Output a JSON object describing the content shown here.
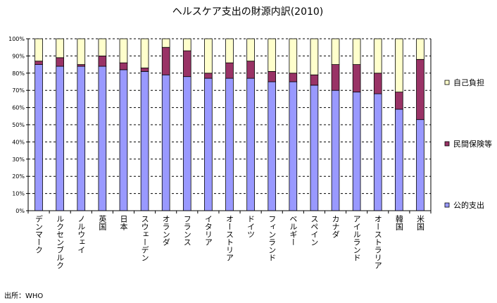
{
  "chart_data": {
    "type": "bar",
    "stacked": true,
    "percent": true,
    "title": "ヘルスケア支出の財源内訳(2010)",
    "source": "出所：WHO",
    "ylim": [
      0,
      100
    ],
    "yticks": [
      "0%",
      "10%",
      "20%",
      "30%",
      "40%",
      "50%",
      "60%",
      "70%",
      "80%",
      "90%",
      "100%"
    ],
    "grid": true,
    "legend_position": "right",
    "categories": [
      "デンマーク",
      "ルクセンブルク",
      "ノルウェイ",
      "英国",
      "日本",
      "スウェーデン",
      "オランダ",
      "フランス",
      "イタリア",
      "オーストリア",
      "ドイツ",
      "フィンランド",
      "ベルギー",
      "スペイン",
      "カナダ",
      "アイルランド",
      "オーストラリア",
      "韓国",
      "米国"
    ],
    "series": [
      {
        "name": "公的支出",
        "color": "#9999ff",
        "values": [
          85,
          84,
          84,
          84,
          82,
          81,
          79,
          78,
          77,
          77,
          77,
          75,
          75,
          73,
          70,
          69,
          68,
          59,
          53
        ]
      },
      {
        "name": "民間保険等",
        "color": "#993366",
        "values": [
          2,
          5,
          1,
          6,
          4,
          2,
          16,
          15,
          3,
          9,
          10,
          6,
          5,
          6,
          15,
          16,
          12,
          10,
          35
        ]
      },
      {
        "name": "自己負担",
        "color": "#ffffcc",
        "values": [
          13,
          11,
          15,
          10,
          14,
          17,
          5,
          7,
          20,
          14,
          13,
          19,
          20,
          21,
          15,
          15,
          20,
          31,
          12
        ]
      }
    ],
    "legend": [
      "自己負担",
      "民間保険等",
      "公的支出"
    ]
  }
}
